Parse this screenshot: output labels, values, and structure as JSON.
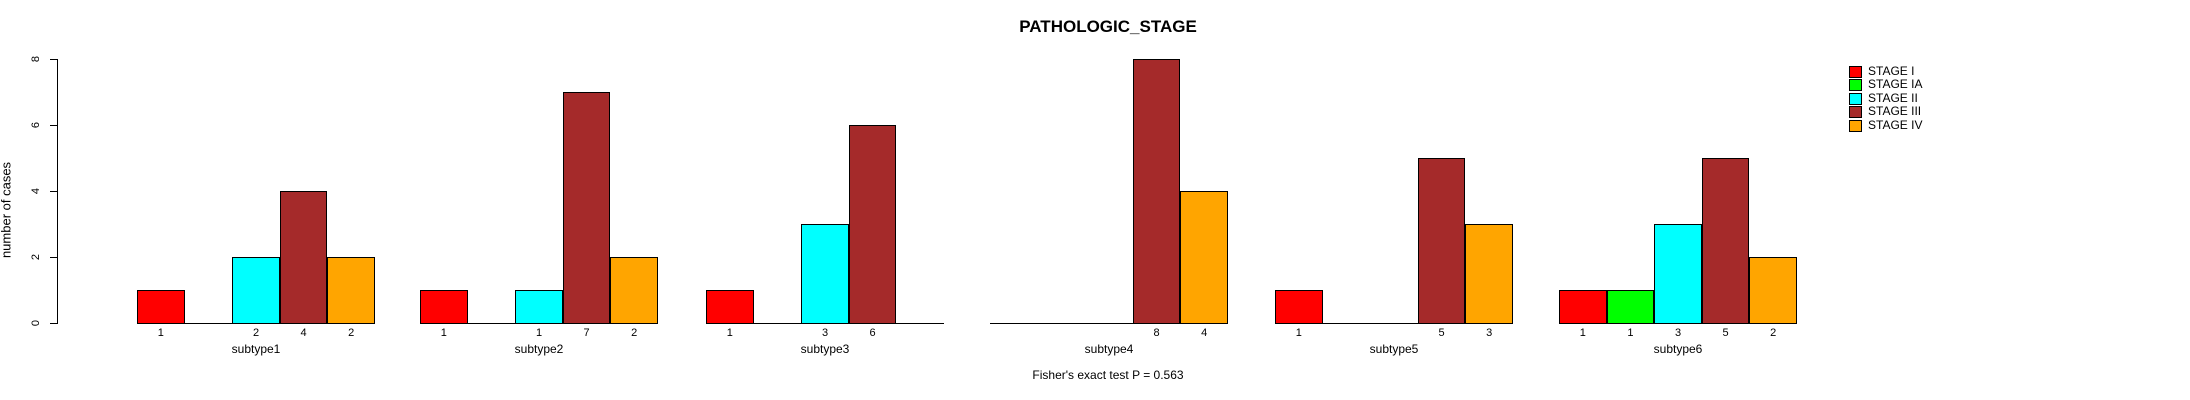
{
  "title": "PATHOLOGIC_STAGE",
  "footer": "Fisher's exact test P = 0.563",
  "y_axis": {
    "label": "number of cases",
    "ticks": [
      0,
      2,
      4,
      6,
      8
    ]
  },
  "chart_data": {
    "type": "bar",
    "title": "PATHOLOGIC_STAGE",
    "xlabel": "",
    "ylabel": "number of cases",
    "ylim": [
      0,
      8
    ],
    "yticks": [
      0,
      2,
      4,
      6,
      8
    ],
    "grid": false,
    "legend_position": "right",
    "bar_value_labels": true,
    "annotation": "Fisher's exact test P = 0.563",
    "categories": [
      "subtype1",
      "subtype2",
      "subtype3",
      "subtype4",
      "subtype5",
      "subtype6"
    ],
    "series": [
      {
        "name": "STAGE I",
        "color": "#FF0000",
        "values": [
          1,
          1,
          1,
          0,
          1,
          1
        ]
      },
      {
        "name": "STAGE IA",
        "color": "#00FF00",
        "values": [
          0,
          0,
          0,
          0,
          0,
          1
        ]
      },
      {
        "name": "STAGE II",
        "color": "#00FFFF",
        "values": [
          2,
          1,
          3,
          0,
          0,
          3
        ]
      },
      {
        "name": "STAGE III",
        "color": "#A52A2A",
        "values": [
          4,
          7,
          6,
          8,
          5,
          5
        ]
      },
      {
        "name": "STAGE IV",
        "color": "#FFA500",
        "values": [
          2,
          2,
          0,
          4,
          3,
          2
        ]
      }
    ]
  }
}
